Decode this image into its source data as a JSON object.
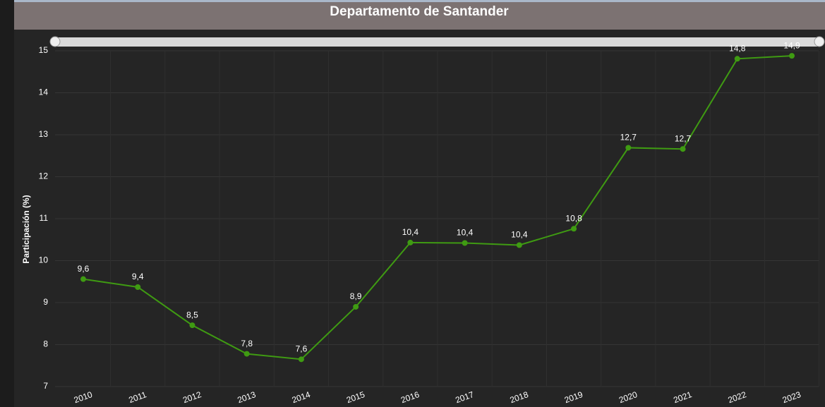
{
  "chart_data": {
    "type": "line",
    "title": "Departamento de Santander",
    "y_label": "Participación (%)",
    "categories": [
      "2010",
      "2011",
      "2012",
      "2013",
      "2014",
      "2015",
      "2016",
      "2017",
      "2018",
      "2019",
      "2020",
      "2021",
      "2022",
      "2023"
    ],
    "series": [
      {
        "name": "Participación",
        "color": "#3f9b12",
        "values": [
          9.56,
          9.37,
          8.46,
          7.78,
          7.65,
          8.9,
          10.43,
          10.42,
          10.37,
          10.76,
          12.69,
          12.66,
          14.81,
          14.88
        ],
        "value_labels": [
          "9,6",
          "9,4",
          "8,5",
          "7,8",
          "7,6",
          "8,9",
          "10,4",
          "10,4",
          "10,4",
          "10,8",
          "12,7",
          "12,7",
          "14,8",
          "14,9"
        ]
      }
    ],
    "ylim": [
      7,
      15
    ],
    "yticks": [
      7,
      8,
      9,
      10,
      11,
      12,
      13,
      14,
      15
    ],
    "grid": true
  }
}
